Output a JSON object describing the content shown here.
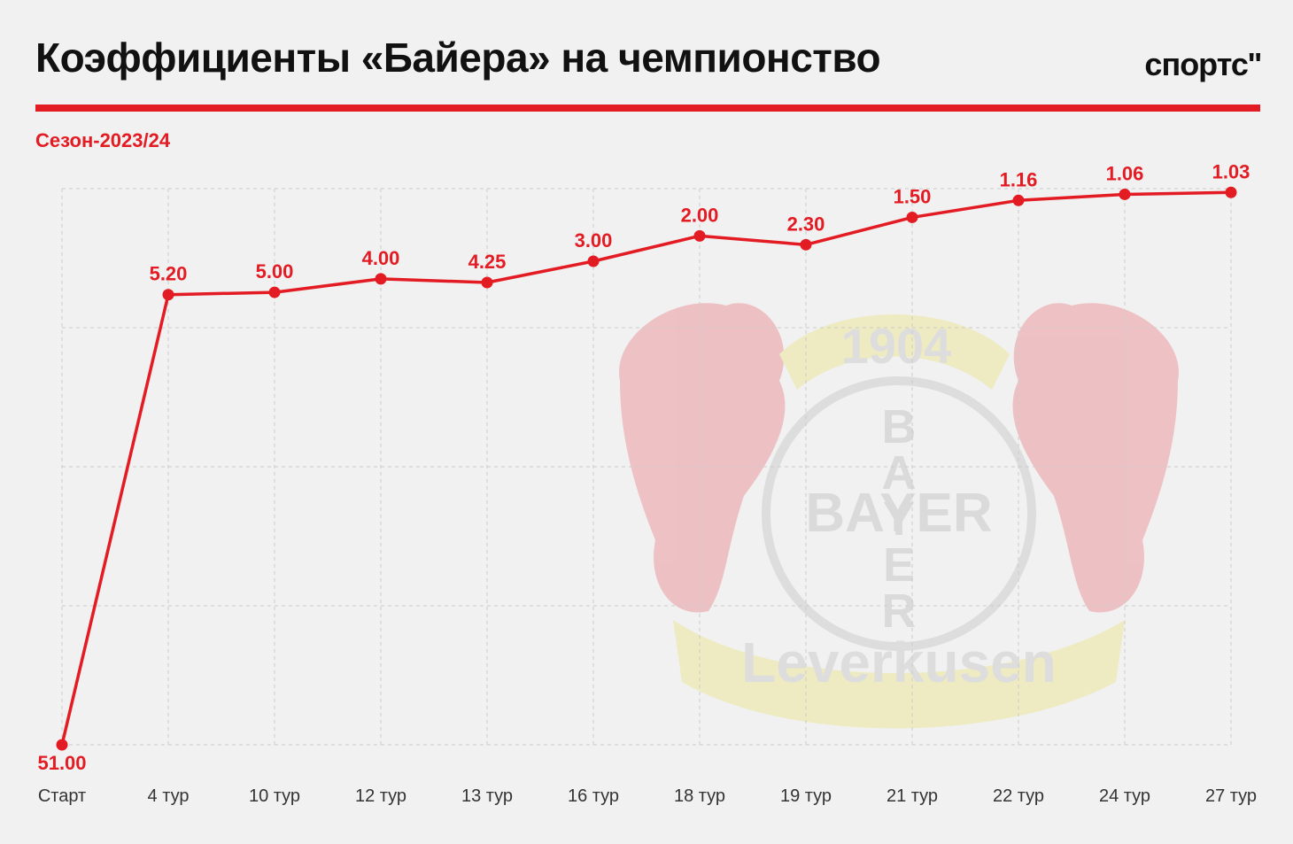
{
  "header": {
    "title": "Коэффициенты «Байера» на чемпионство",
    "brand": "спортс''",
    "subtitle": "Сезон-2023/24"
  },
  "colors": {
    "accent": "#e31b23",
    "text": "#111111",
    "grid": "#cccccc",
    "background": "#f1f1f1"
  },
  "watermark": {
    "description": "Bayer 04 Leverkusen crest",
    "texts": [
      "1904",
      "BAYER",
      "BAYER",
      "Leverkusen"
    ]
  },
  "chart_data": {
    "type": "line",
    "title": "Коэффициенты «Байера» на чемпионство",
    "subtitle": "Сезон-2023/24",
    "xlabel": "",
    "ylabel": "",
    "scale": "nonlinear (odds)",
    "grid": true,
    "categories": [
      "Старт",
      "4 тур",
      "10 тур",
      "12 тур",
      "13 тур",
      "16 тур",
      "18 тур",
      "19 тур",
      "21 тур",
      "22 тур",
      "24 тур",
      "27 тур"
    ],
    "values": [
      51.0,
      5.2,
      5.0,
      4.0,
      4.25,
      3.0,
      2.0,
      2.3,
      1.5,
      1.16,
      1.06,
      1.03
    ],
    "labels": [
      "51.00",
      "5.20",
      "5.00",
      "4.00",
      "4.25",
      "3.00",
      "2.00",
      "2.30",
      "1.50",
      "1.16",
      "1.06",
      "1.03"
    ]
  }
}
